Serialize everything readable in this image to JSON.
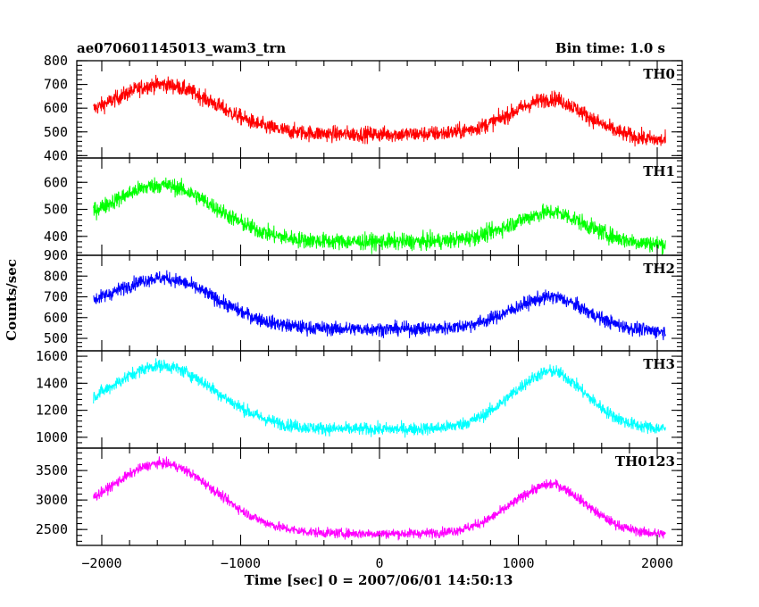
{
  "header": {
    "title": "ae070601145013_wam3_trn",
    "bin_time": "Bin time: 1.0 s"
  },
  "chart_data": {
    "type": "line",
    "title": "ae070601145013_wam3_trn",
    "subtitle": "Bin time: 1.0 s",
    "xlabel": "Time [sec] 0 = 2007/06/01 14:50:13",
    "ylabel": "Counts/sec",
    "xlim": [
      -2180,
      2180
    ],
    "x_ticks": [
      -2000,
      -1000,
      0,
      1000,
      2000
    ],
    "x_tick_labels": [
      "−2000",
      "−1000",
      "0",
      "1000",
      "2000"
    ],
    "x_data_range": [
      -2060,
      2060
    ],
    "peak_times": [
      -1580,
      1260
    ],
    "panels": [
      {
        "name": "TH0",
        "color": "#ff0000",
        "ylim": [
          390,
          800
        ],
        "y_ticks": [
          400,
          500,
          600,
          700,
          800
        ],
        "y_tick_labels": [
          "400",
          "500",
          "600",
          "700",
          "800"
        ],
        "baseline": 490,
        "peak1": 700,
        "peak2": 640,
        "start": 600,
        "end": 450,
        "noise": 60
      },
      {
        "name": "TH1",
        "color": "#00ff00",
        "ylim": [
          330,
          690
        ],
        "y_ticks": [
          400,
          500,
          600
        ],
        "y_tick_labels": [
          "400",
          "500",
          "600"
        ],
        "baseline": 380,
        "peak1": 590,
        "peak2": 490,
        "start": 510,
        "end": 365,
        "noise": 55
      },
      {
        "name": "TH2",
        "color": "#0000ff",
        "ylim": [
          440,
          900
        ],
        "y_ticks": [
          500,
          600,
          700,
          800,
          900
        ],
        "y_tick_labels": [
          "500",
          "600",
          "700",
          "800",
          "900"
        ],
        "baseline": 545,
        "peak1": 790,
        "peak2": 700,
        "start": 710,
        "end": 525,
        "noise": 60
      },
      {
        "name": "TH3",
        "color": "#00ffff",
        "ylim": [
          920,
          1640
        ],
        "y_ticks": [
          1000,
          1200,
          1400,
          1600
        ],
        "y_tick_labels": [
          "1000",
          "1200",
          "1400",
          "1600"
        ],
        "baseline": 1060,
        "peak1": 1530,
        "peak2": 1490,
        "start": 1310,
        "end": 1060,
        "noise": 85
      },
      {
        "name": "TH0123",
        "color": "#ff00ff",
        "ylim": [
          2230,
          3880
        ],
        "y_ticks": [
          2500,
          3000,
          3500
        ],
        "y_tick_labels": [
          "2500",
          "3000",
          "3500"
        ],
        "baseline": 2430,
        "peak1": 3620,
        "peak2": 3270,
        "start": 3080,
        "end": 2410,
        "noise": 150
      }
    ]
  }
}
